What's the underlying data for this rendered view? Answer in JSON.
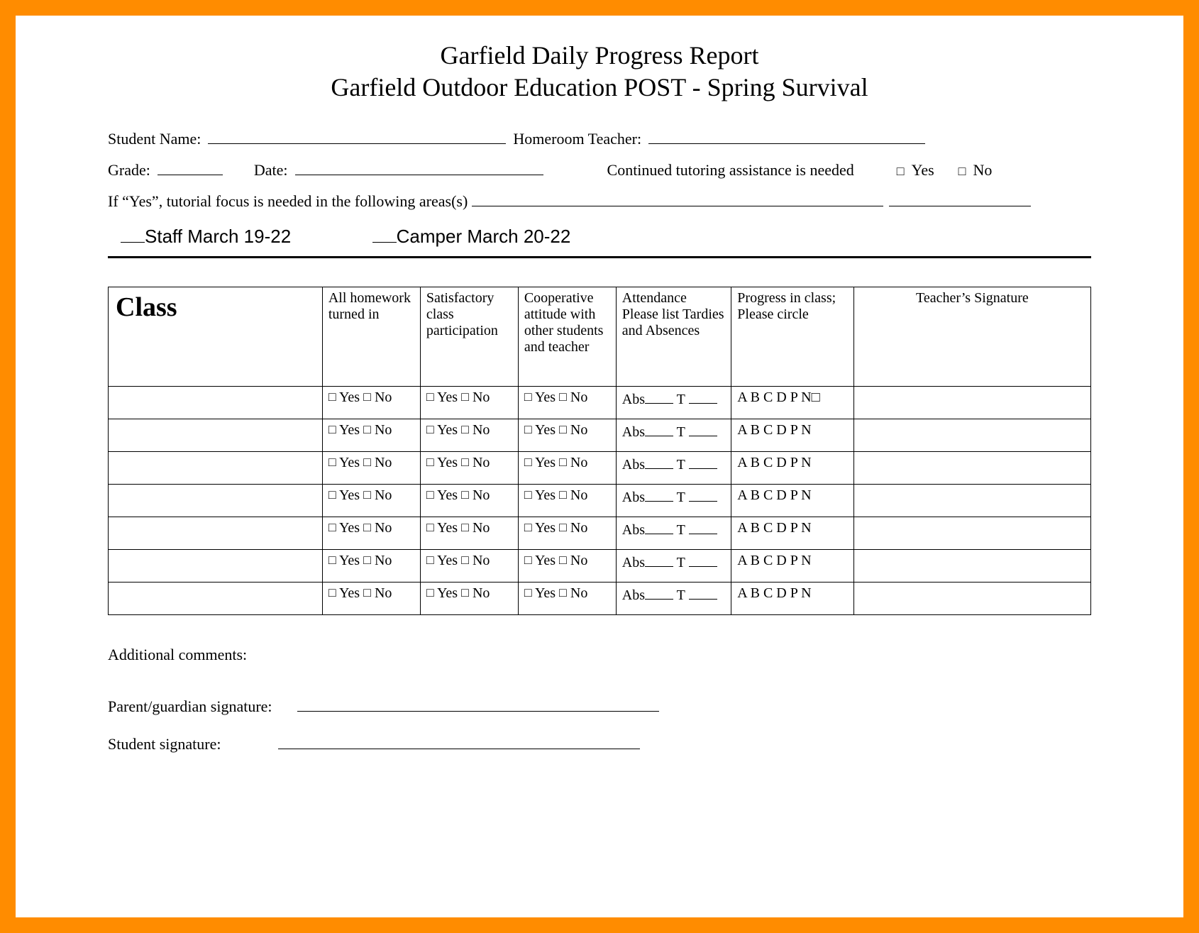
{
  "colors": {
    "frame_border": "#ff8c00",
    "page_bg": "#ffffff",
    "text": "#000000",
    "rule": "#000000"
  },
  "title": {
    "line1": "Garfield Daily Progress Report",
    "line2": "Garfield Outdoor Education POST - Spring Survival",
    "fontsize": 36
  },
  "info": {
    "student_name_label": "Student Name:",
    "homeroom_label": "Homeroom Teacher:",
    "grade_label": "Grade:",
    "date_label": "Date:",
    "tutoring_label": "Continued tutoring assistance is needed",
    "yes_label": "Yes",
    "no_label": "No",
    "focus_prompt": "If “Yes”, tutorial focus is needed in the following areas(s)"
  },
  "checkbox_glyph": "□",
  "staff_camper": {
    "staff": "Staff  March 19-22",
    "camper": "Camper  March 20-22"
  },
  "table": {
    "headers": {
      "class": "Class",
      "homework": "All homework turned in",
      "participation": "Satisfactory class participation",
      "attitude": "Cooperative attitude with other students and teacher",
      "attendance": "Attendance Please list Tardies and Absences",
      "progress": "Progress in class;\nPlease circle",
      "signature": "Teacher’s Signature"
    },
    "yes_no_cell": {
      "yes": "Yes",
      "no": "No"
    },
    "attendance_cell": {
      "abs": "Abs",
      "t": "T"
    },
    "progress_options": "A B C D P N",
    "progress_options_row0": "A B C D P N□",
    "row_count": 7
  },
  "footer": {
    "comments_label": "Additional comments:",
    "parent_sig_label": "Parent/guardian signature:",
    "student_sig_label": "Student signature:"
  }
}
